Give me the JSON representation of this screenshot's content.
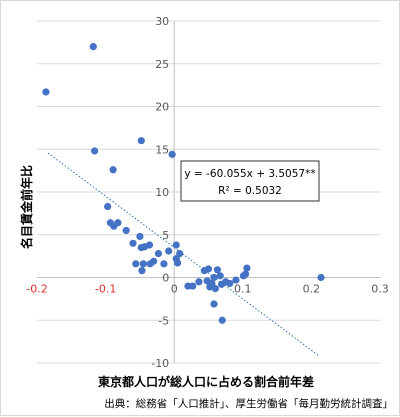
{
  "chart_data": {
    "type": "scatter",
    "xlabel": "東京都人口が総人口に占める割合前年差",
    "ylabel": "名目賃金前年比",
    "xlim": [
      -0.2,
      0.3
    ],
    "ylim": [
      -10,
      30
    ],
    "x_ticks": [
      "-0.2",
      "-0.1",
      "0",
      "0.1",
      "0.2",
      "0.3"
    ],
    "y_ticks": [
      "30",
      "25",
      "20",
      "15",
      "10",
      "5",
      "0",
      "-5",
      "-10"
    ],
    "x_tick_values": [
      -0.2,
      -0.1,
      0,
      0.1,
      0.2,
      0.3
    ],
    "y_tick_values": [
      30,
      25,
      20,
      15,
      10,
      5,
      0,
      -5,
      -10
    ],
    "negative_tick_color": "#e03030",
    "grid": "horizontal",
    "point_color": "#4472c4",
    "trendline": {
      "slope": -60.055,
      "intercept": 3.5057,
      "style": "dotted",
      "color": "#2e75b6",
      "x_range": [
        -0.184,
        0.21
      ],
      "equation": "y = -60.055x + 3.5057**",
      "r2": "R² = 0.5032"
    },
    "points": [
      {
        "x": -0.187,
        "y": 21.7
      },
      {
        "x": -0.118,
        "y": 27.0
      },
      {
        "x": -0.116,
        "y": 14.8
      },
      {
        "x": -0.089,
        "y": 12.6
      },
      {
        "x": -0.048,
        "y": 16.0
      },
      {
        "x": -0.003,
        "y": 14.4
      },
      {
        "x": -0.097,
        "y": 8.3
      },
      {
        "x": -0.093,
        "y": 6.4
      },
      {
        "x": -0.088,
        "y": 6.0
      },
      {
        "x": -0.082,
        "y": 6.4
      },
      {
        "x": -0.07,
        "y": 5.5
      },
      {
        "x": -0.06,
        "y": 4.0
      },
      {
        "x": -0.05,
        "y": 4.8
      },
      {
        "x": -0.048,
        "y": 3.5
      },
      {
        "x": -0.043,
        "y": 3.6
      },
      {
        "x": -0.036,
        "y": 3.8
      },
      {
        "x": -0.023,
        "y": 2.8
      },
      {
        "x": -0.056,
        "y": 1.6
      },
      {
        "x": -0.045,
        "y": 1.6
      },
      {
        "x": -0.035,
        "y": 1.6
      },
      {
        "x": -0.03,
        "y": 1.9
      },
      {
        "x": -0.015,
        "y": 1.6
      },
      {
        "x": -0.047,
        "y": 0.8
      },
      {
        "x": -0.008,
        "y": 3.1
      },
      {
        "x": 0.003,
        "y": 3.8
      },
      {
        "x": 0.008,
        "y": 2.8
      },
      {
        "x": 0.003,
        "y": 2.2
      },
      {
        "x": 0.005,
        "y": 1.7
      },
      {
        "x": 0.02,
        "y": -1.0
      },
      {
        "x": 0.027,
        "y": -1.0
      },
      {
        "x": 0.036,
        "y": -0.5
      },
      {
        "x": 0.044,
        "y": 0.8
      },
      {
        "x": 0.048,
        "y": -0.4
      },
      {
        "x": 0.05,
        "y": 1.0
      },
      {
        "x": 0.052,
        "y": -1.1
      },
      {
        "x": 0.055,
        "y": -0.7
      },
      {
        "x": 0.058,
        "y": 0.0
      },
      {
        "x": 0.06,
        "y": -1.3
      },
      {
        "x": 0.058,
        "y": -3.1
      },
      {
        "x": 0.063,
        "y": 0.9
      },
      {
        "x": 0.067,
        "y": 0.2
      },
      {
        "x": 0.069,
        "y": -0.8
      },
      {
        "x": 0.075,
        "y": -0.5
      },
      {
        "x": 0.07,
        "y": -5.0
      },
      {
        "x": 0.081,
        "y": -0.7
      },
      {
        "x": 0.09,
        "y": -0.3
      },
      {
        "x": 0.101,
        "y": 0.2
      },
      {
        "x": 0.104,
        "y": 0.4
      },
      {
        "x": 0.106,
        "y": 1.1
      },
      {
        "x": 0.214,
        "y": 0.0
      }
    ]
  },
  "source_note": "出典：総務省「人口推計」、厚生労働省「毎月勤労統計調査」"
}
